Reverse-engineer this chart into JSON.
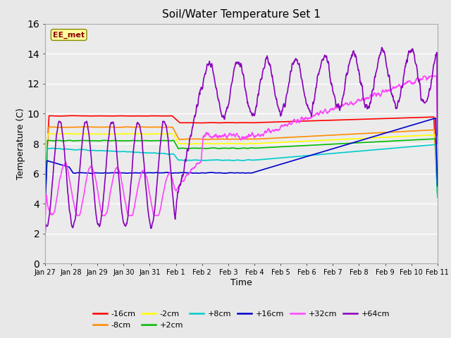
{
  "title": "Soil/Water Temperature Set 1",
  "xlabel": "Time",
  "ylabel": "Temperature (C)",
  "ylim": [
    0,
    16
  ],
  "annotation": "EE_met",
  "annotation_color": "#8B0000",
  "annotation_bg": "#FFFFA0",
  "series": {
    "-16cm": {
      "color": "#FF0000",
      "lw": 1.2
    },
    "-8cm": {
      "color": "#FF8C00",
      "lw": 1.2
    },
    "-2cm": {
      "color": "#FFFF00",
      "lw": 1.2
    },
    "+2cm": {
      "color": "#00BB00",
      "lw": 1.2
    },
    "+8cm": {
      "color": "#00CCCC",
      "lw": 1.2
    },
    "+16cm": {
      "color": "#0000CC",
      "lw": 1.2
    },
    "+32cm": {
      "color": "#FF44FF",
      "lw": 1.2
    },
    "+64cm": {
      "color": "#8800BB",
      "lw": 1.2
    }
  },
  "tick_labels": [
    "Jan 27",
    "Jan 28",
    "Jan 29",
    "Jan 30",
    "Jan 31",
    "Feb 1",
    "Feb 2",
    "Feb 3",
    "Feb 4",
    "Feb 5",
    "Feb 6",
    "Feb 7",
    "Feb 8",
    "Feb 9",
    "Feb 10",
    "Feb 11"
  ],
  "yticks": [
    0,
    2,
    4,
    6,
    8,
    10,
    12,
    14,
    16
  ],
  "bg_color": "#E8E8E8",
  "plot_bg": "#EBEBEB"
}
